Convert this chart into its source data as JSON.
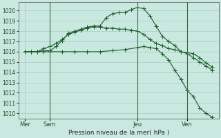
{
  "xlabel": "Pression niveau de la mer( hPa )",
  "ylim": [
    1009.5,
    1020.8
  ],
  "yticks": [
    1010,
    1011,
    1012,
    1013,
    1014,
    1015,
    1016,
    1017,
    1018,
    1019,
    1020
  ],
  "background_color": "#c8e8e0",
  "grid_color": "#a8c8be",
  "line_color": "#1a5c28",
  "day_positions": [
    0,
    2,
    9,
    13
  ],
  "day_labels": [
    "Mer",
    "Sam",
    "Jeu",
    "Ven"
  ],
  "vline_positions": [
    2,
    9,
    13
  ],
  "line1_x": [
    0,
    0.5,
    1,
    1.5,
    2,
    2.5,
    3,
    3.5,
    4,
    4.5,
    5,
    5.5,
    6,
    6.5,
    7,
    7.5,
    8,
    8.5,
    9,
    9.5,
    10,
    10.5,
    11,
    11.5,
    12,
    12.5,
    13,
    13.5,
    14,
    14.5,
    15
  ],
  "line1_y": [
    1016.0,
    1016.0,
    1016.0,
    1016.1,
    1016.1,
    1016.5,
    1017.1,
    1017.8,
    1018.0,
    1018.2,
    1018.4,
    1018.5,
    1018.5,
    1019.3,
    1019.7,
    1019.8,
    1019.8,
    1020.1,
    1020.3,
    1020.2,
    1019.5,
    1018.5,
    1017.5,
    1017.0,
    1016.6,
    1016.0,
    1015.9,
    1015.8,
    1015.4,
    1014.9,
    1014.5
  ],
  "line2_x": [
    0,
    0.5,
    1,
    1.5,
    2,
    2.5,
    3,
    3.5,
    4,
    4.5,
    5,
    5.5,
    6,
    6.5,
    7,
    7.5,
    8,
    8.5,
    9,
    9.5,
    10,
    10.5,
    11,
    11.5,
    12,
    12.5,
    13,
    13.5,
    14,
    14.5,
    15
  ],
  "line2_y": [
    1016.0,
    1016.0,
    1016.0,
    1016.3,
    1016.5,
    1016.8,
    1017.2,
    1017.7,
    1017.9,
    1018.1,
    1018.3,
    1018.4,
    1018.4,
    1018.3,
    1018.3,
    1018.2,
    1018.2,
    1018.1,
    1018.0,
    1017.7,
    1017.2,
    1016.8,
    1016.6,
    1016.3,
    1016.2,
    1016.0,
    1015.8,
    1015.4,
    1015.0,
    1014.6,
    1014.2
  ],
  "line3_x": [
    0,
    0.5,
    1,
    1.5,
    2,
    3,
    4,
    5,
    6,
    7,
    8,
    9,
    9.5,
    10,
    10.5,
    11,
    11.5,
    12,
    12.5,
    13,
    13.5,
    14,
    14.5,
    15
  ],
  "line3_y": [
    1016.0,
    1016.0,
    1016.0,
    1016.0,
    1016.0,
    1016.0,
    1016.0,
    1016.0,
    1016.0,
    1016.1,
    1016.2,
    1016.4,
    1016.5,
    1016.4,
    1016.3,
    1015.8,
    1015.2,
    1014.2,
    1013.3,
    1012.2,
    1011.6,
    1010.5,
    1010.0,
    1009.6
  ]
}
